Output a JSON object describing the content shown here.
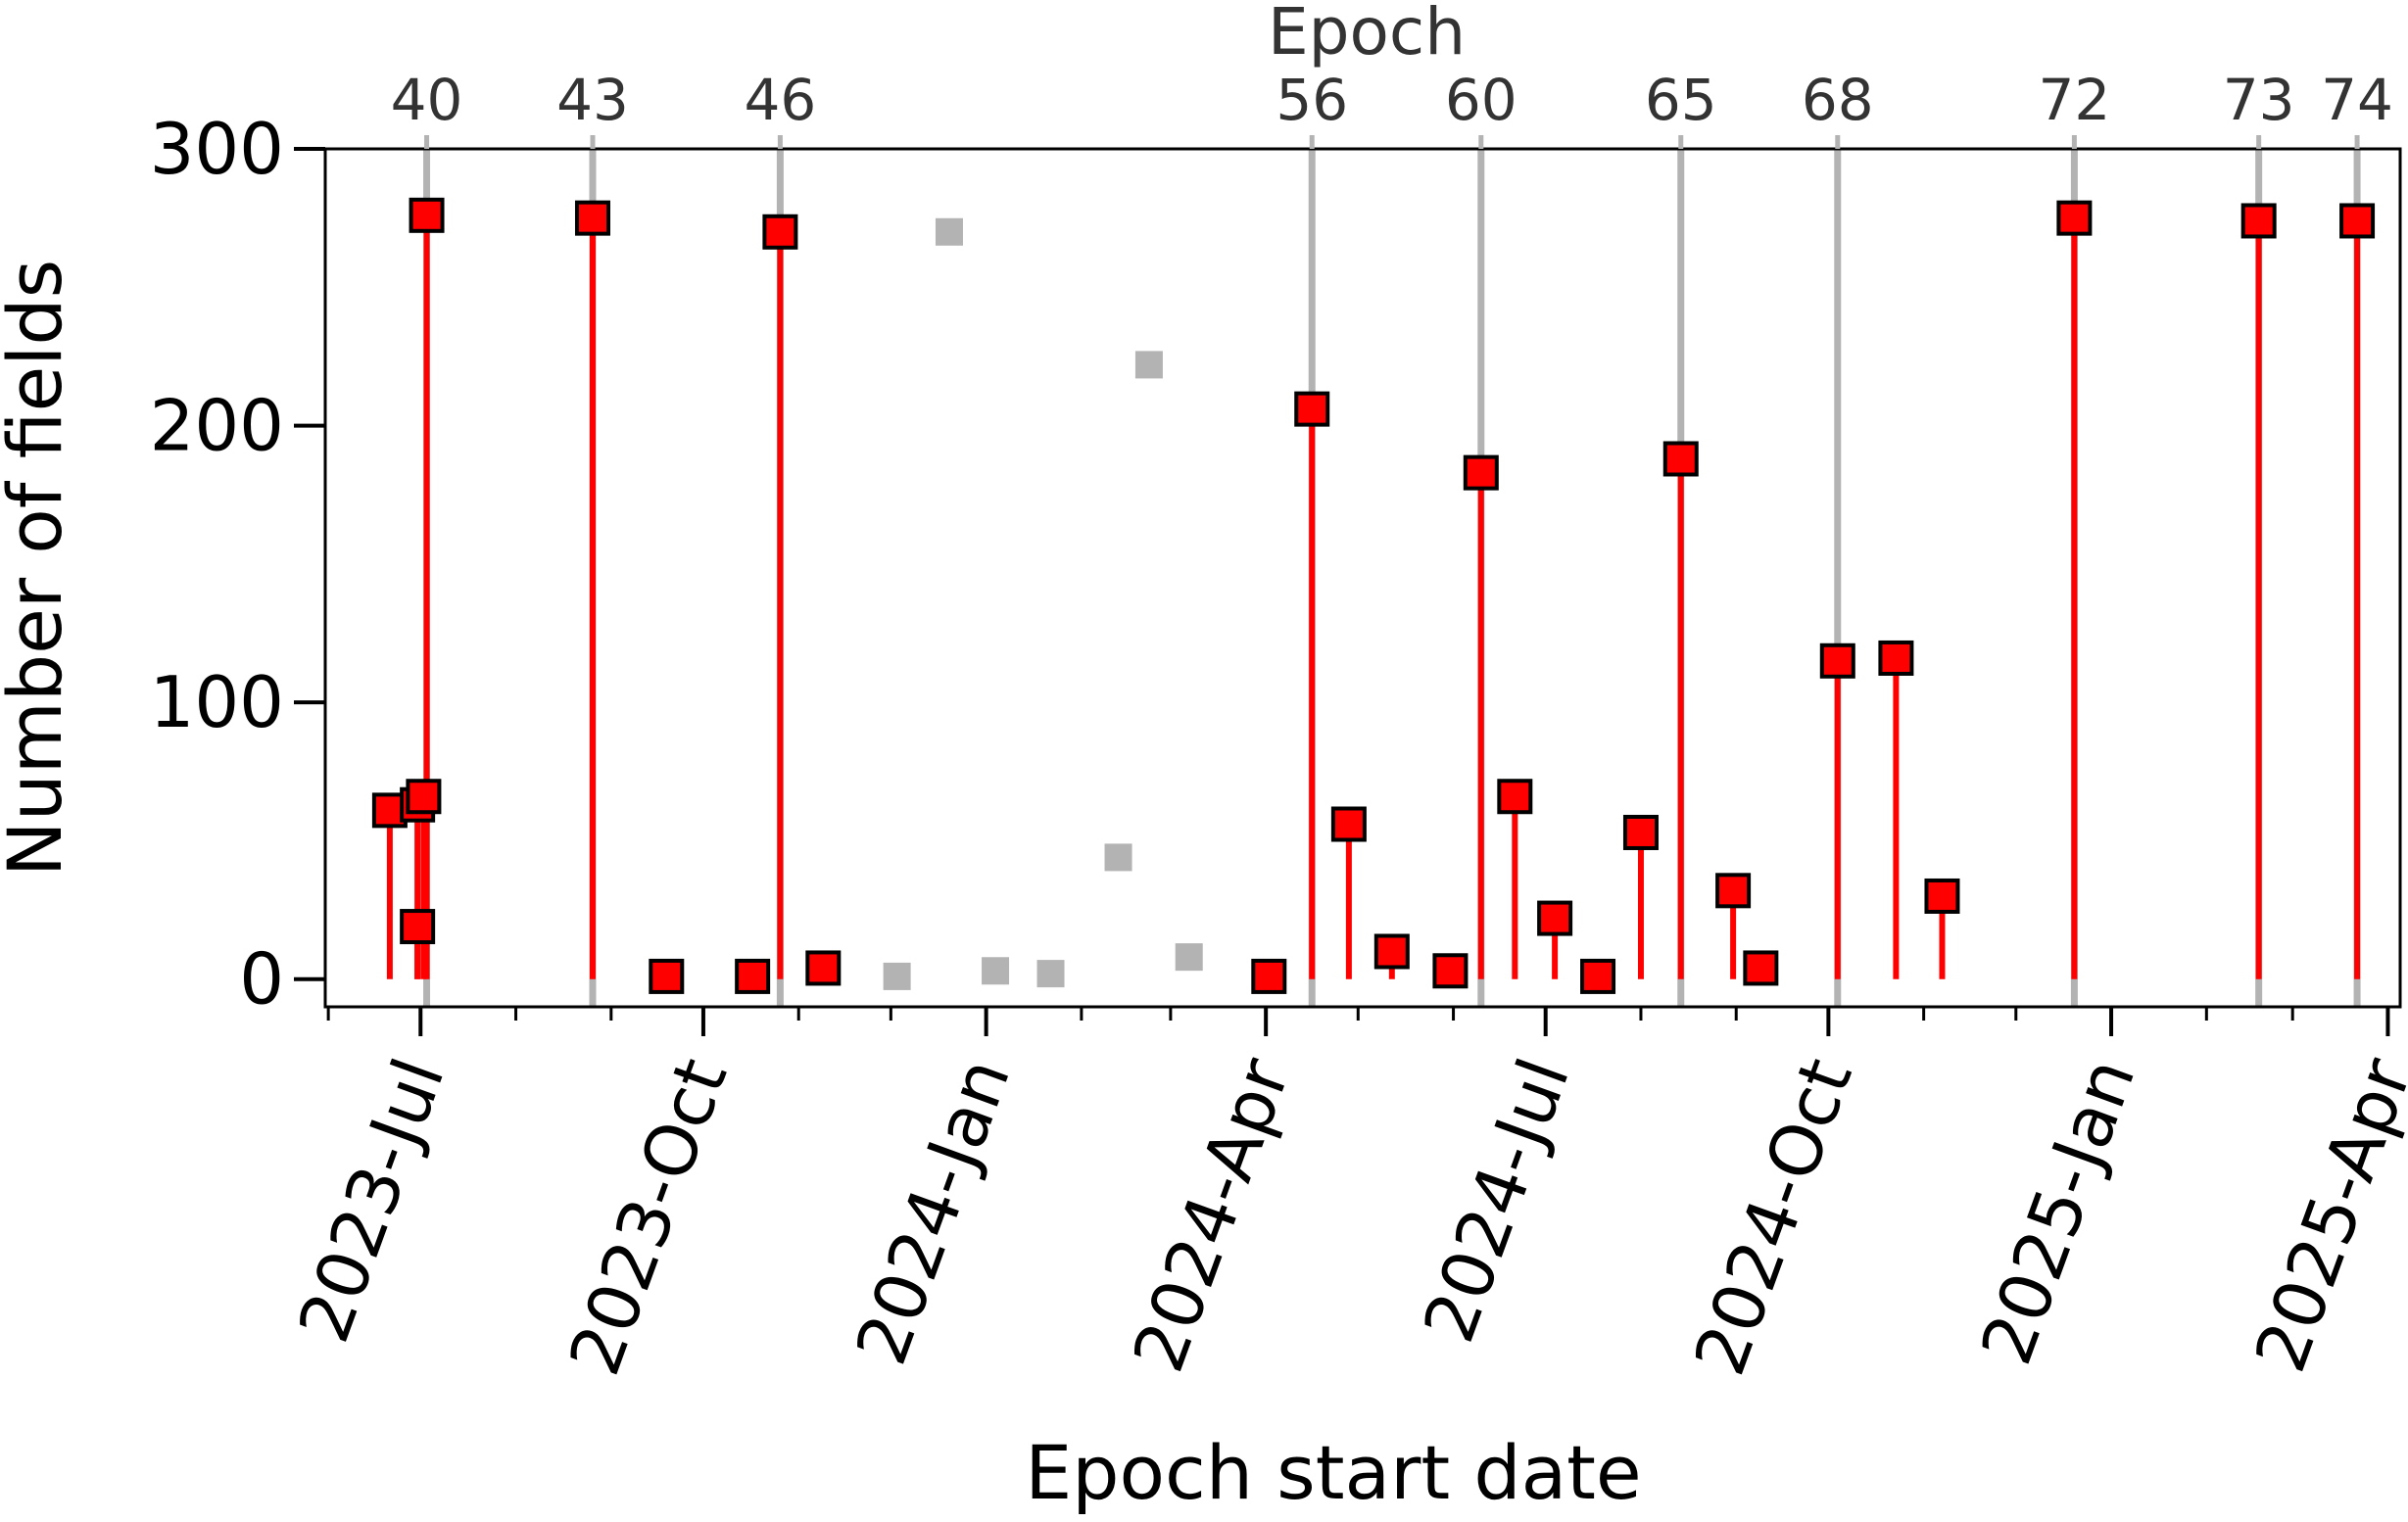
{
  "chart_data": {
    "type": "scatter",
    "xlabel": "Epoch start date",
    "ylabel": "Number of fields",
    "top_axis_label": "Epoch",
    "ylim": [
      -10,
      300
    ],
    "xlim": [
      "2023-05-31",
      "2025-04-05"
    ],
    "y_ticks": [
      0,
      100,
      200,
      300
    ],
    "x_ticks": [
      {
        "date": "2023-07-01",
        "label": "2023-Jul"
      },
      {
        "date": "2023-10-01",
        "label": "2023-Oct"
      },
      {
        "date": "2024-01-01",
        "label": "2024-Jan"
      },
      {
        "date": "2024-04-01",
        "label": "2024-Apr"
      },
      {
        "date": "2024-07-01",
        "label": "2024-Jul"
      },
      {
        "date": "2024-10-01",
        "label": "2024-Oct"
      },
      {
        "date": "2025-01-01",
        "label": "2025-Jan"
      },
      {
        "date": "2025-04-01",
        "label": "2025-Apr"
      }
    ],
    "epochs": [
      {
        "label": "40",
        "date": "2023-07-03"
      },
      {
        "label": "43",
        "date": "2023-08-26"
      },
      {
        "label": "46",
        "date": "2023-10-26"
      },
      {
        "label": "56",
        "date": "2024-04-16"
      },
      {
        "label": "60",
        "date": "2024-06-10"
      },
      {
        "label": "65",
        "date": "2024-08-14"
      },
      {
        "label": "68",
        "date": "2024-10-04"
      },
      {
        "label": "72",
        "date": "2024-12-20"
      },
      {
        "label": "73",
        "date": "2025-02-18"
      },
      {
        "label": "74",
        "date": "2025-03-22"
      }
    ],
    "series": [
      {
        "style": "red-stem",
        "color": "#ff0000",
        "points": [
          {
            "x": "2023-06-21",
            "y": 61
          },
          {
            "x": "2023-06-30",
            "y": 19
          },
          {
            "x": "2023-06-30",
            "y": 63
          },
          {
            "x": "2023-07-02",
            "y": 66
          },
          {
            "x": "2023-07-03",
            "y": 276
          },
          {
            "x": "2023-08-26",
            "y": 275
          },
          {
            "x": "2023-09-19",
            "y": 1
          },
          {
            "x": "2023-10-17",
            "y": 1
          },
          {
            "x": "2023-11-09",
            "y": 4
          },
          {
            "x": "2023-10-26",
            "y": 270
          },
          {
            "x": "2024-04-02",
            "y": 1
          },
          {
            "x": "2024-04-16",
            "y": 206
          },
          {
            "x": "2024-04-28",
            "y": 56
          },
          {
            "x": "2024-05-12",
            "y": 10
          },
          {
            "x": "2024-05-31",
            "y": 3
          },
          {
            "x": "2024-06-10",
            "y": 183
          },
          {
            "x": "2024-06-21",
            "y": 66
          },
          {
            "x": "2024-07-04",
            "y": 22
          },
          {
            "x": "2024-07-18",
            "y": 1
          },
          {
            "x": "2024-08-01",
            "y": 53
          },
          {
            "x": "2024-08-14",
            "y": 188
          },
          {
            "x": "2024-08-31",
            "y": 32
          },
          {
            "x": "2024-09-09",
            "y": 4
          },
          {
            "x": "2024-10-04",
            "y": 115
          },
          {
            "x": "2024-10-23",
            "y": 116
          },
          {
            "x": "2024-11-07",
            "y": 30
          },
          {
            "x": "2024-12-20",
            "y": 275
          },
          {
            "x": "2025-02-18",
            "y": 274
          },
          {
            "x": "2025-03-22",
            "y": 274
          }
        ]
      },
      {
        "style": "grey-square",
        "color": "#b3b3b3",
        "points": [
          {
            "x": "2023-12-03",
            "y": 1
          },
          {
            "x": "2023-12-20",
            "y": 270
          },
          {
            "x": "2024-01-04",
            "y": 3
          },
          {
            "x": "2024-01-22",
            "y": 2
          },
          {
            "x": "2024-02-13",
            "y": 44
          },
          {
            "x": "2024-02-23",
            "y": 222
          },
          {
            "x": "2024-03-07",
            "y": 8
          }
        ]
      }
    ]
  }
}
